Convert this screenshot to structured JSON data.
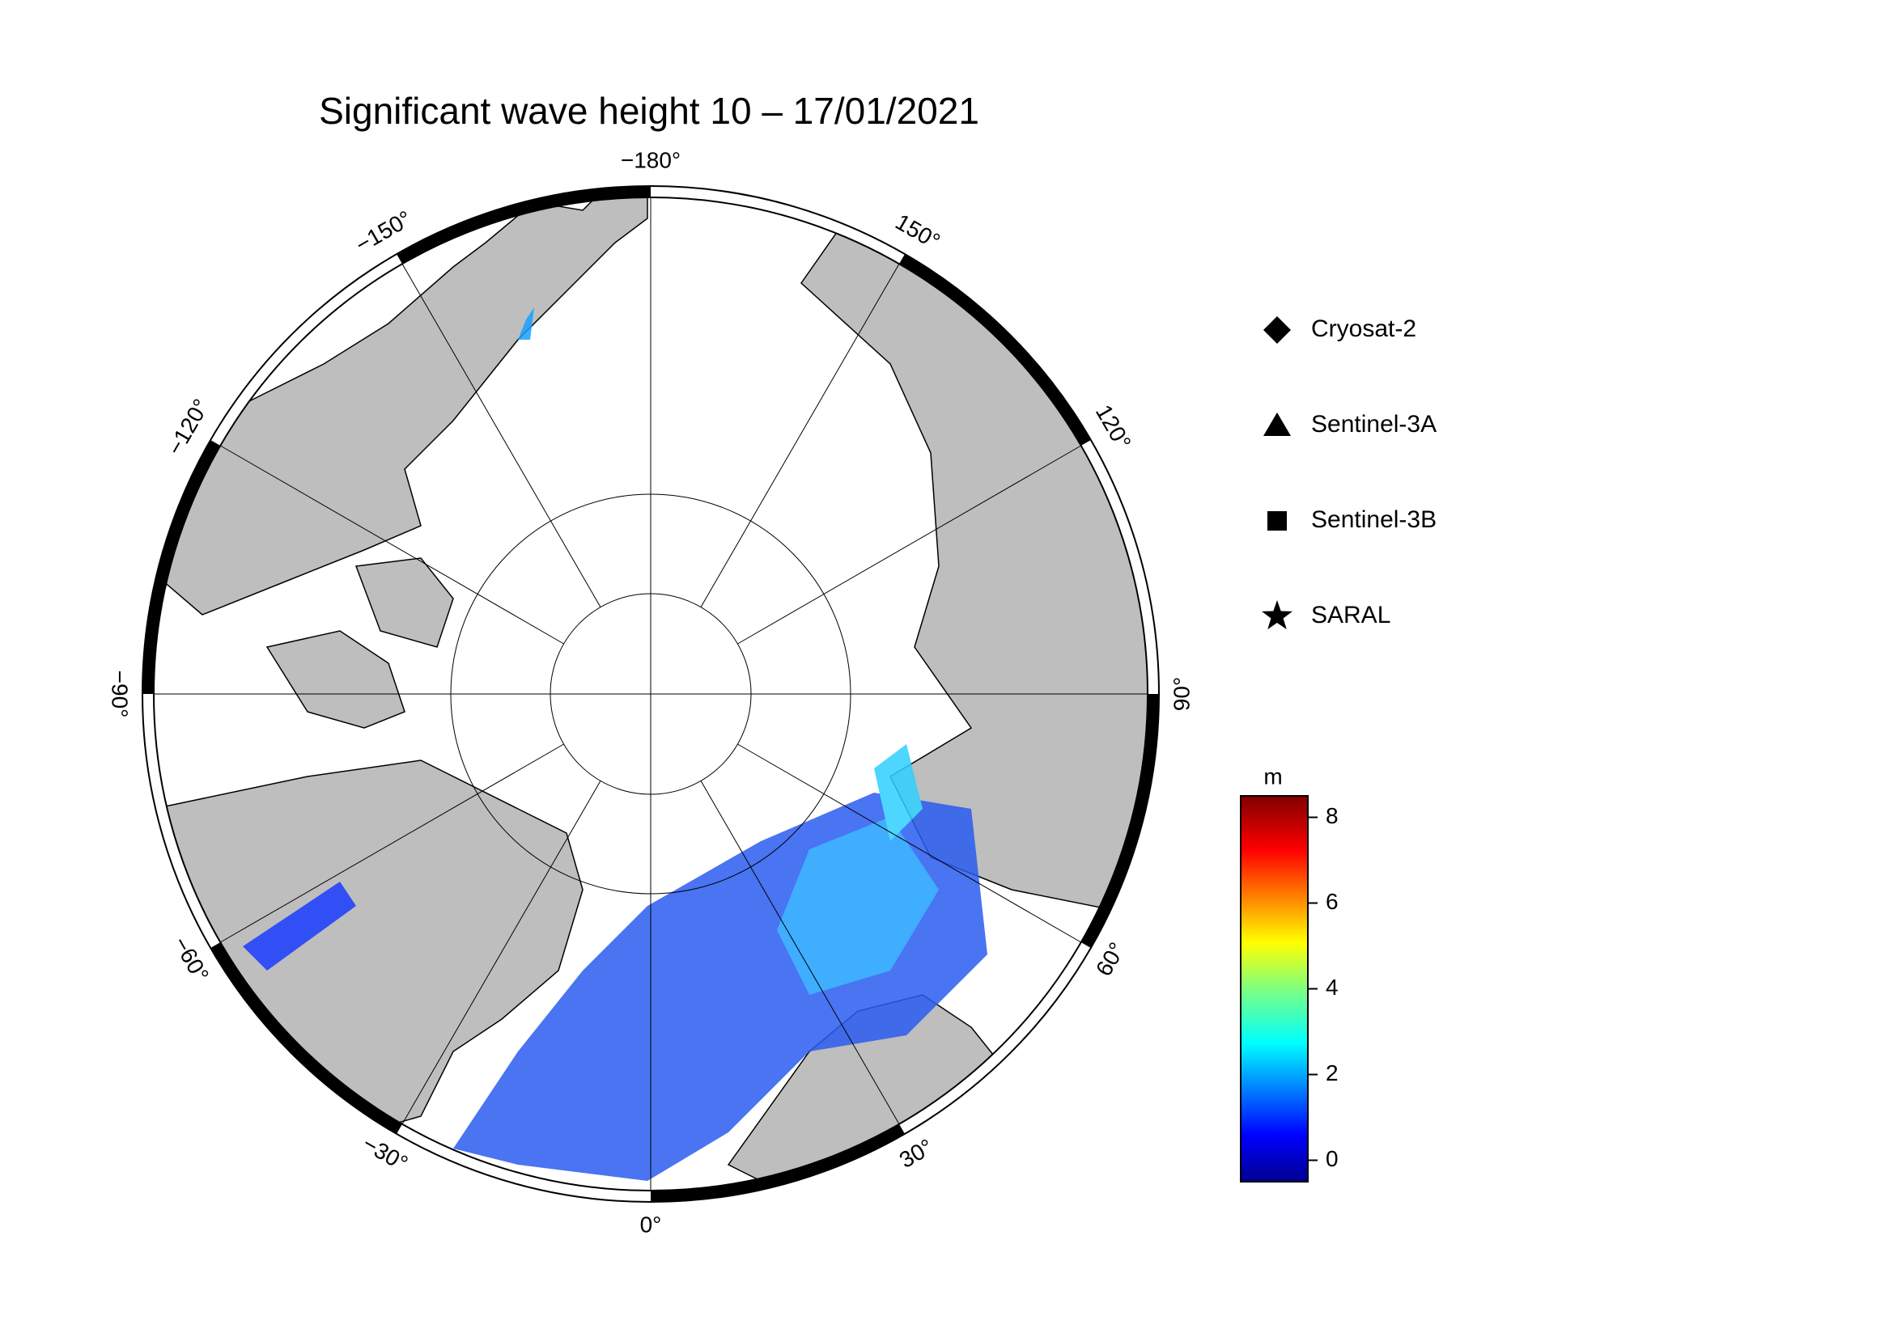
{
  "title": "Significant wave height 10 – 17/01/2021",
  "map": {
    "longitude_labels": [
      {
        "value": -180,
        "label": "−180°"
      },
      {
        "value": 150,
        "label": "150°"
      },
      {
        "value": 120,
        "label": "120°"
      },
      {
        "value": 90,
        "label": "90°"
      },
      {
        "value": 60,
        "label": "60°"
      },
      {
        "value": 30,
        "label": "30°"
      },
      {
        "value": 0,
        "label": "0°"
      },
      {
        "value": -30,
        "label": "−30°"
      },
      {
        "value": -60,
        "label": "−60°"
      },
      {
        "value": -90,
        "label": "−90°"
      },
      {
        "value": -120,
        "label": "−120°"
      },
      {
        "value": -150,
        "label": "−150°"
      }
    ]
  },
  "legend": [
    {
      "name": "Cryosat-2",
      "marker": "diamond"
    },
    {
      "name": "Sentinel-3A",
      "marker": "triangle"
    },
    {
      "name": "Sentinel-3B",
      "marker": "square"
    },
    {
      "name": "SARAL",
      "marker": "star"
    }
  ],
  "colorbar": {
    "unit": "m",
    "range": [
      -0.5,
      8.5
    ],
    "ticks": [
      0,
      2,
      4,
      6,
      8
    ]
  }
}
